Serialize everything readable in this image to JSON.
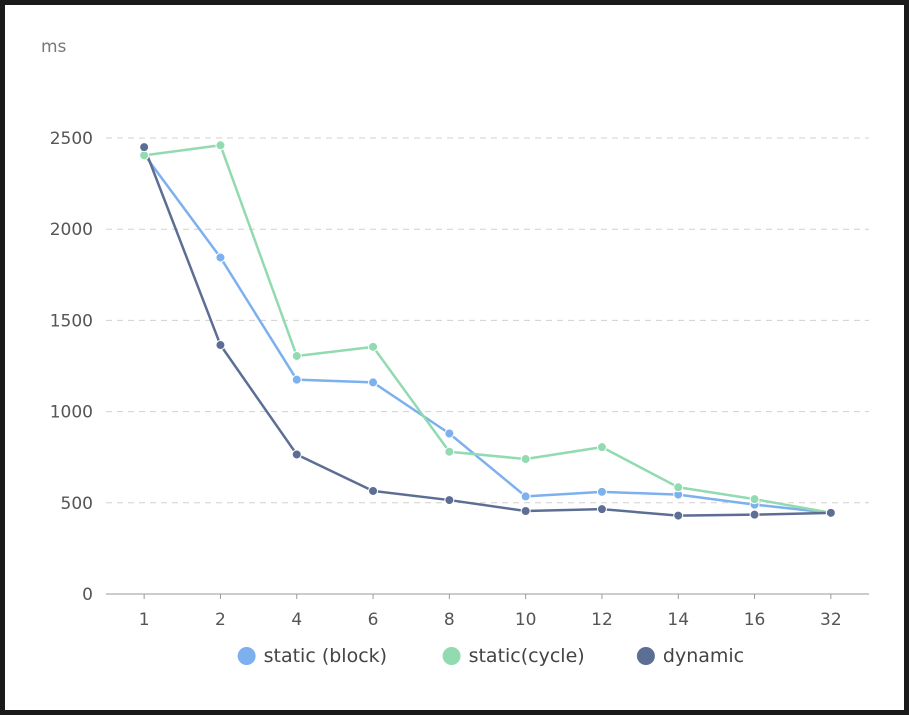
{
  "chart_data": {
    "type": "line",
    "ylabel": "ms",
    "ylim": [
      0,
      2500
    ],
    "yticks": [
      "0",
      "500",
      "1000",
      "1500",
      "2000",
      "2500"
    ],
    "categories": [
      "1",
      "2",
      "4",
      "6",
      "8",
      "10",
      "12",
      "14",
      "16",
      "32"
    ],
    "grid": "horizontal dashed",
    "legend_position": "bottom-center",
    "series": [
      {
        "name": "static (block)",
        "color": "#7cb0ee",
        "values": [
          2410,
          1845,
          1175,
          1160,
          880,
          535,
          560,
          545,
          490,
          445
        ]
      },
      {
        "name": "static(cycle)",
        "color": "#92dab0",
        "values": [
          2405,
          2460,
          1305,
          1355,
          780,
          740,
          805,
          585,
          520,
          445
        ]
      },
      {
        "name": "dynamic",
        "color": "#5d6e94",
        "values": [
          2450,
          1365,
          765,
          565,
          515,
          455,
          465,
          430,
          435,
          445
        ]
      }
    ]
  }
}
